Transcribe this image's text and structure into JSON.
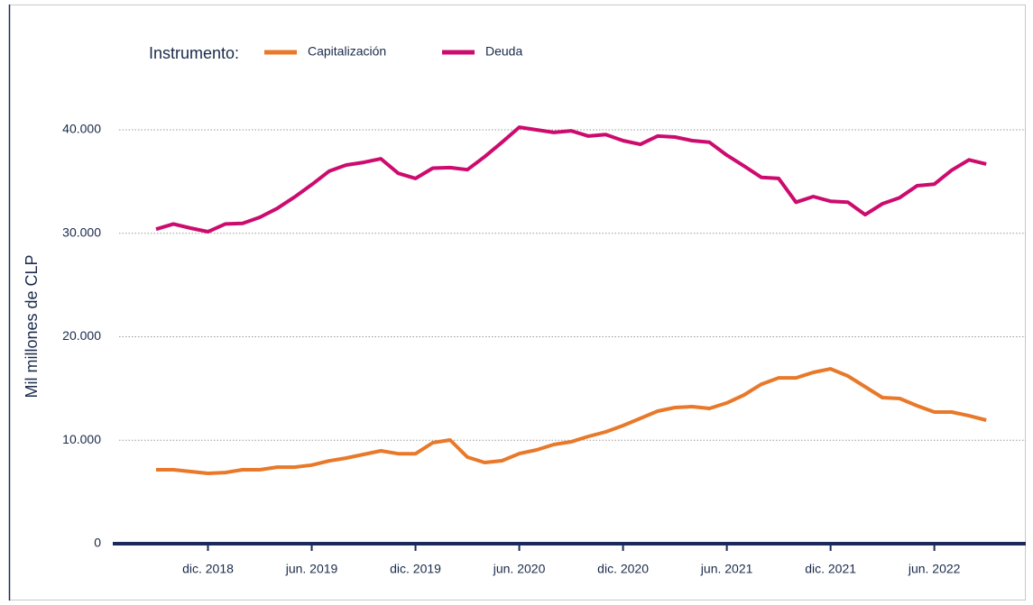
{
  "chart_data": {
    "type": "line",
    "legend_title": "Instrumento:",
    "y_label": "Mil millones de CLP",
    "x": [
      "2018-09",
      "2018-10",
      "2018-11",
      "2018-12",
      "2019-01",
      "2019-02",
      "2019-03",
      "2019-04",
      "2019-05",
      "2019-06",
      "2019-07",
      "2019-08",
      "2019-09",
      "2019-10",
      "2019-11",
      "2019-12",
      "2020-01",
      "2020-02",
      "2020-03",
      "2020-04",
      "2020-05",
      "2020-06",
      "2020-07",
      "2020-08",
      "2020-09",
      "2020-10",
      "2020-11",
      "2020-12",
      "2021-01",
      "2021-02",
      "2021-03",
      "2021-04",
      "2021-05",
      "2021-06",
      "2021-07",
      "2021-08",
      "2021-09",
      "2021-10",
      "2021-11",
      "2021-12",
      "2022-01",
      "2022-02",
      "2022-03",
      "2022-04",
      "2022-05",
      "2022-06",
      "2022-07",
      "2022-08",
      "2022-09"
    ],
    "series": [
      {
        "name": "Capitalización",
        "color": "#e8792a",
        "values": [
          7150,
          7150,
          6970,
          6800,
          6880,
          7150,
          7150,
          7400,
          7400,
          7600,
          8000,
          8280,
          8630,
          8980,
          8700,
          8700,
          9760,
          10020,
          8370,
          7840,
          8020,
          8710,
          9060,
          9590,
          9850,
          10370,
          10810,
          11420,
          12110,
          12810,
          13160,
          13250,
          13070,
          13600,
          14380,
          15420,
          16030,
          16030,
          16560,
          16900,
          16210,
          15160,
          14120,
          14030,
          13330,
          12720,
          12720,
          12370,
          11940
        ]
      },
      {
        "name": "Deuda",
        "color": "#cc0b6e",
        "values": [
          30400,
          30900,
          30500,
          30150,
          30900,
          30950,
          31550,
          32400,
          33500,
          34700,
          36000,
          36600,
          36850,
          37200,
          35800,
          35300,
          36300,
          36350,
          36150,
          37400,
          38800,
          40250,
          40000,
          39750,
          39900,
          39400,
          39550,
          38950,
          38600,
          39400,
          39300,
          38950,
          38800,
          37550,
          36500,
          35400,
          35300,
          33000,
          33550,
          33100,
          33000,
          31800,
          32850,
          33450,
          34600,
          34750,
          36100,
          37100,
          36700
        ]
      }
    ],
    "xticks": [
      {
        "value": "2018-12",
        "label": "dic. 2018"
      },
      {
        "value": "2019-06",
        "label": "jun. 2019"
      },
      {
        "value": "2019-12",
        "label": "dic. 2019"
      },
      {
        "value": "2020-06",
        "label": "jun. 2020"
      },
      {
        "value": "2020-12",
        "label": "dic. 2020"
      },
      {
        "value": "2021-06",
        "label": "jun. 2021"
      },
      {
        "value": "2021-12",
        "label": "dic. 2021"
      },
      {
        "value": "2022-06",
        "label": "jun. 2022"
      }
    ],
    "ylim": [
      0,
      40000
    ],
    "yticks": [
      0,
      {
        "value": 10000,
        "label": "10.000"
      },
      {
        "value": 20000,
        "label": "20.000"
      },
      {
        "value": 30000,
        "label": "30.000"
      },
      {
        "value": 40000,
        "label": "40.000"
      }
    ],
    "grid": true
  }
}
